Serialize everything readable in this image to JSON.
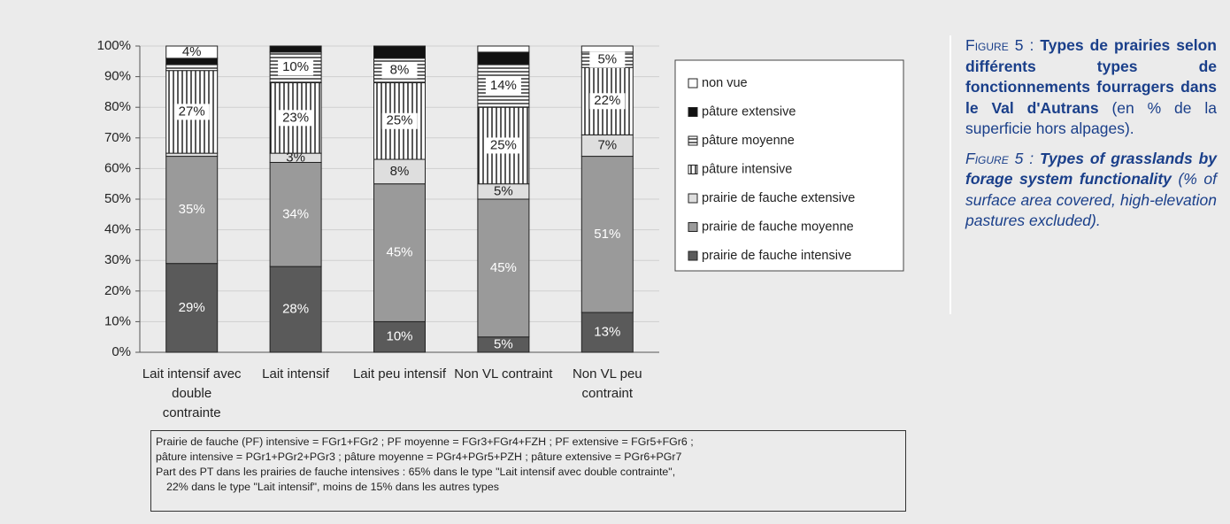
{
  "chart_data": {
    "type": "stacked_bar",
    "categories": [
      "Lait intensif avec double contrainte",
      "Lait intensif",
      "Lait peu intensif",
      "Non VL contraint",
      "Non VL peu contraint"
    ],
    "series": [
      {
        "name": "prairie de fauche intensive",
        "color": "#5a5a5a",
        "values": [
          29,
          28,
          10,
          5,
          13
        ],
        "value_labels": [
          "29%",
          "28%",
          "10%",
          "5%",
          "13%"
        ]
      },
      {
        "name": "prairie de fauche moyenne",
        "color": "#9a9a9a",
        "values": [
          35,
          34,
          45,
          45,
          51
        ],
        "value_labels": [
          "35%",
          "34%",
          "45%",
          "45%",
          "51%"
        ]
      },
      {
        "name": "prairie de fauche extensive",
        "color": "#dedede",
        "values": [
          1,
          3,
          8,
          5,
          7
        ],
        "value_labels": [
          null,
          "3%",
          "8%",
          "5%",
          "7%"
        ]
      },
      {
        "name": "pâture intensive",
        "color": "#000000",
        "pattern": "vertical",
        "values": [
          27,
          23,
          25,
          25,
          22
        ],
        "value_labels": [
          "27%",
          "23%",
          "25%",
          "25%",
          "22%"
        ]
      },
      {
        "name": "pâture moyenne",
        "color": "#000000",
        "pattern": "horizontal",
        "values": [
          2,
          10,
          8,
          14,
          5
        ],
        "value_labels": [
          null,
          "10%",
          "8%",
          "14%",
          "5%"
        ]
      },
      {
        "name": "pâture extensive",
        "color": "#111111",
        "values": [
          2,
          2,
          4,
          4,
          0
        ],
        "value_labels": [
          null,
          null,
          null,
          null,
          null
        ]
      },
      {
        "name": "non vue",
        "color": "#ffffff",
        "values": [
          4,
          0,
          0,
          2,
          2
        ],
        "value_labels": [
          "4%",
          null,
          null,
          null,
          null
        ]
      }
    ],
    "ylim": [
      0,
      100
    ],
    "yticks": [
      {
        "value": 0,
        "label": "0%"
      },
      {
        "value": 10,
        "label": "10%"
      },
      {
        "value": 20,
        "label": "20%"
      },
      {
        "value": 30,
        "label": "30%"
      },
      {
        "value": 40,
        "label": "40%"
      },
      {
        "value": 50,
        "label": "50%"
      },
      {
        "value": 60,
        "label": "60%"
      },
      {
        "value": 70,
        "label": "70%"
      },
      {
        "value": 80,
        "label": "80%"
      },
      {
        "value": 90,
        "label": "90%"
      },
      {
        "value": 100,
        "label": "100%"
      }
    ],
    "grid": true,
    "legend": "right",
    "notes": [
      "Prairie de fauche (PF) intensive = FGr1+FGr2 ; PF moyenne = FGr3+FGr4+FZH ; PF extensive = FGr5+FGr6 ;",
      "pâture intensive = PGr1+PGr2+PGr3 ; pâture moyenne = PGr4+PGr5+PZH ; pâture extensive = PGr6+PGr7",
      "Part des PT dans les prairies de fauche intensives : 65% dans le type \"Lait intensif avec double contrainte\",",
      "22% dans le type \"Lait intensif\", moins de 15% dans les autres types"
    ]
  },
  "figure_caption": {
    "fr": {
      "label": "Figure 5 : ",
      "title": "Types de prairies selon différents types de fonctionnements fourragers dans le Val d'Autrans",
      "text": " (en % de la superficie hors alpages)."
    },
    "en": {
      "label": "Figure 5 : ",
      "title": "Types of grasslands by forage system functionality",
      "text": " (% of surface area covered, high-elevation pastures excluded)."
    }
  }
}
